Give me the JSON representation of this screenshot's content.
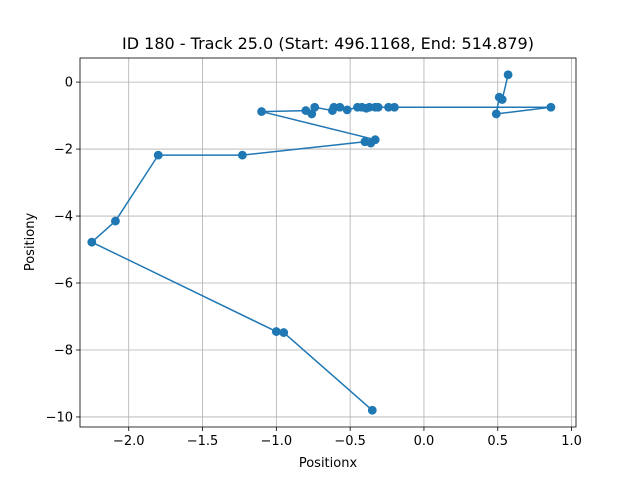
{
  "chart_data": {
    "type": "line",
    "title": "ID 180 - Track 25.0 (Start: 496.1168, End: 514.879)",
    "xlabel": "Positionx",
    "ylabel": "Positiony",
    "xlim": [
      -2.33,
      1.03
    ],
    "ylim": [
      -10.3,
      0.72
    ],
    "xticks": [
      -2.0,
      -1.5,
      -1.0,
      -0.5,
      0.0,
      0.5,
      1.0
    ],
    "xtick_labels": [
      "−2.0",
      "−1.5",
      "−1.0",
      "−0.5",
      "0.0",
      "0.5",
      "1.0"
    ],
    "yticks": [
      0,
      -2,
      -4,
      -6,
      -8,
      -10
    ],
    "ytick_labels": [
      "0",
      "−2",
      "−4",
      "−6",
      "−8",
      "−10"
    ],
    "grid": true,
    "line_color": "#1f77b4",
    "marker": "circle",
    "series": [
      {
        "x": [
          0.57,
          0.53,
          0.51,
          0.49,
          0.86,
          -0.2,
          -0.24,
          -0.31,
          -0.33,
          -0.37,
          -0.39,
          -0.42,
          -0.45,
          -0.52,
          -0.57,
          -0.61,
          -0.62,
          -0.74,
          -0.76,
          -0.8,
          -1.1,
          -0.33,
          -0.36,
          -0.4,
          -1.23,
          -1.8,
          -2.09,
          -2.25,
          -1.0,
          -0.95,
          -0.35
        ],
        "y": [
          0.22,
          -0.52,
          -0.45,
          -0.95,
          -0.75,
          -0.75,
          -0.75,
          -0.75,
          -0.75,
          -0.75,
          -0.78,
          -0.75,
          -0.75,
          -0.83,
          -0.75,
          -0.75,
          -0.85,
          -0.75,
          -0.95,
          -0.85,
          -0.88,
          -1.72,
          -1.82,
          -1.78,
          -2.18,
          -2.18,
          -4.15,
          -4.78,
          -7.45,
          -7.48,
          -9.8
        ]
      }
    ]
  }
}
